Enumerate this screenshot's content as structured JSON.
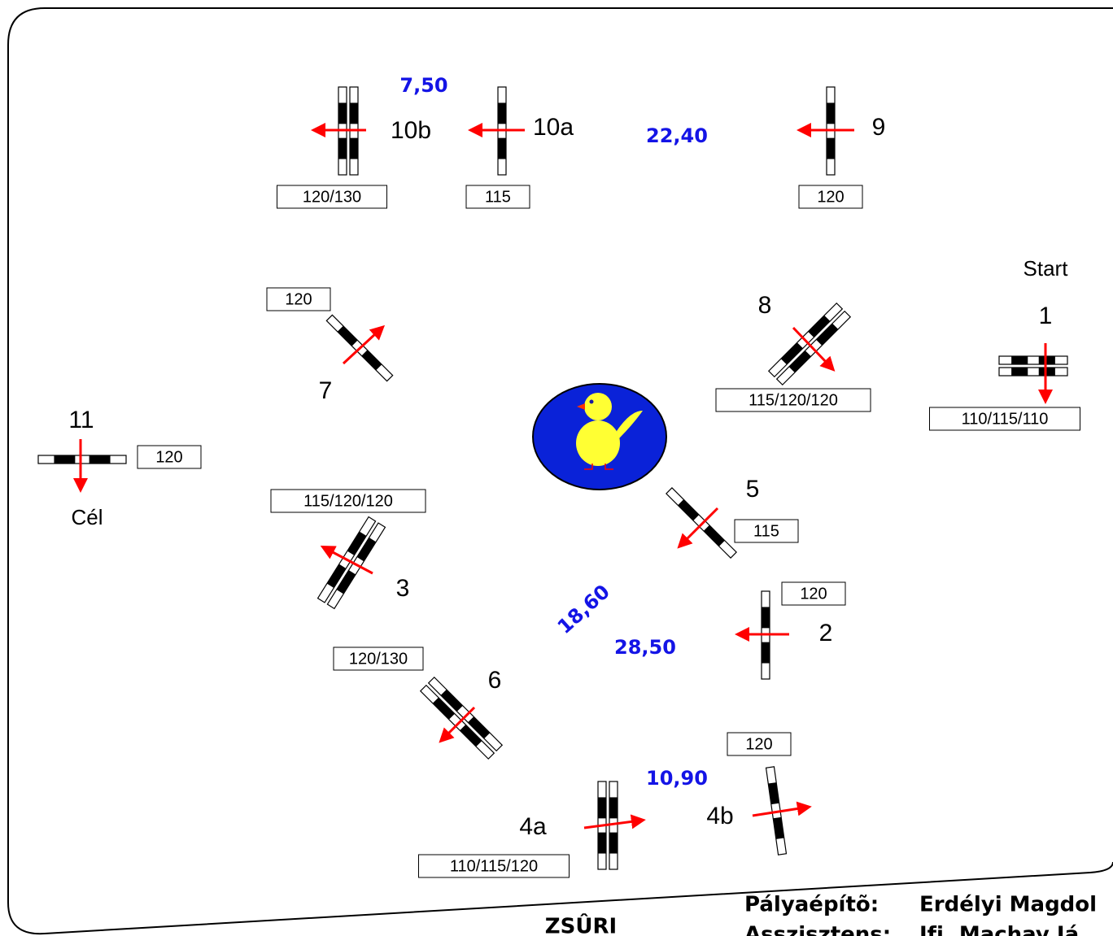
{
  "course": {
    "start": "Start",
    "finish": "Cél",
    "obstacles": [
      {
        "number": "1",
        "height": "110/115/110"
      },
      {
        "number": "2",
        "height": "120"
      },
      {
        "number": "3",
        "height": "115/120/120"
      },
      {
        "number": "4a",
        "height": "110/115/120"
      },
      {
        "number": "4b",
        "height": "120"
      },
      {
        "number": "5",
        "height": "115"
      },
      {
        "number": "6",
        "height": "120/130"
      },
      {
        "number": "7",
        "height": "120"
      },
      {
        "number": "8",
        "height": "115/120/120"
      },
      {
        "number": "9",
        "height": "120"
      },
      {
        "number": "10a",
        "height": "115"
      },
      {
        "number": "10b",
        "height": "120/130"
      },
      {
        "number": "11",
        "height": "120"
      }
    ],
    "distances": [
      "7,50",
      "22,40",
      "18,60",
      "28,50",
      "10,90"
    ]
  },
  "footer": {
    "jury": "ZSÛRI",
    "builder_label": "Pályaépítõ:",
    "builder": "Erdélyi Magdol",
    "assistant_label": "Asszisztens:",
    "assistant": "Ifj. Machay Já"
  }
}
